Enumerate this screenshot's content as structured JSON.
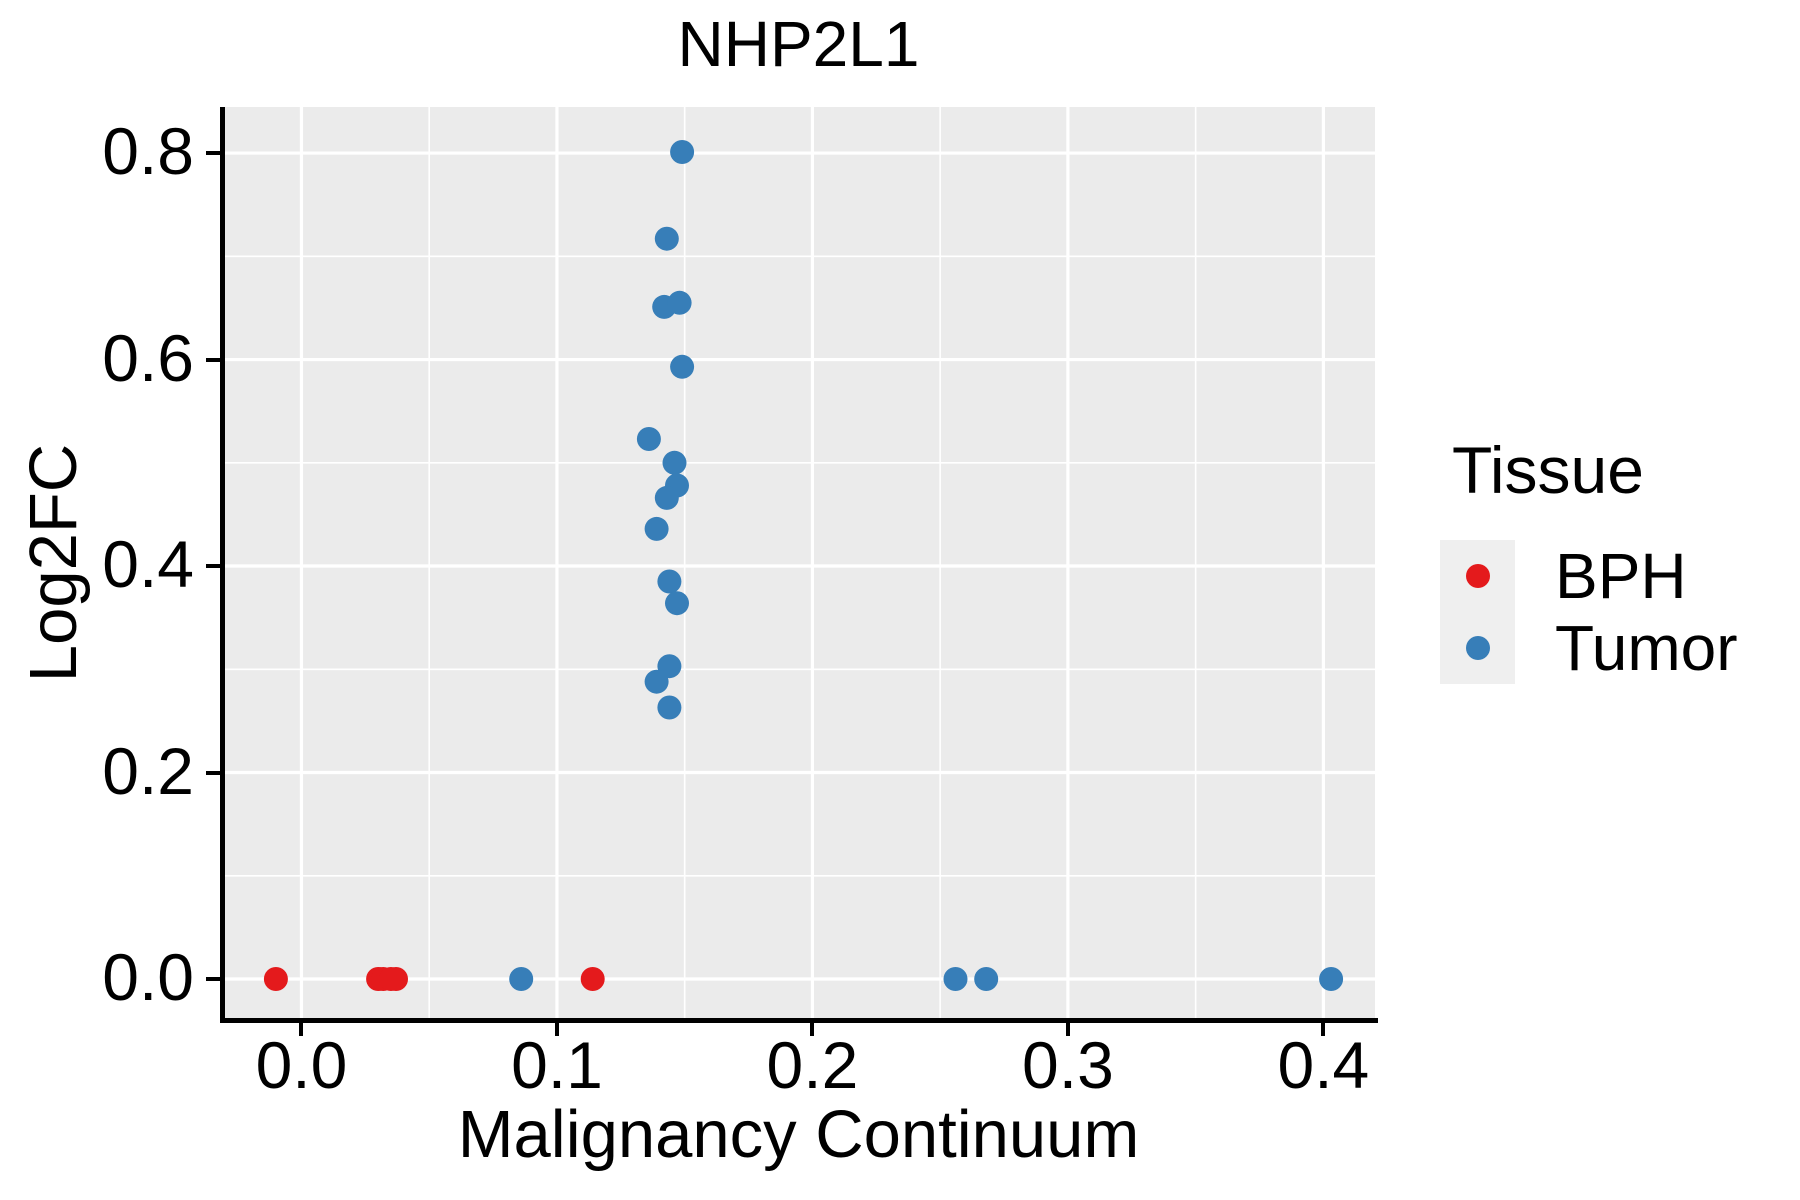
{
  "title": "NHP2L1",
  "x_axis": {
    "label": "Malignancy Continuum",
    "tick_labels": [
      "0.0",
      "0.1",
      "0.2",
      "0.3",
      "0.4"
    ],
    "tick_values": [
      0.0,
      0.1,
      0.2,
      0.3,
      0.4
    ],
    "minor_tick_values": [
      0.05,
      0.15,
      0.25,
      0.35
    ]
  },
  "y_axis": {
    "label": "Log2FC",
    "tick_labels": [
      "0.0",
      "0.2",
      "0.4",
      "0.6",
      "0.8"
    ],
    "tick_values": [
      0.0,
      0.2,
      0.4,
      0.6,
      0.8
    ],
    "minor_tick_values": [
      0.1,
      0.3,
      0.5,
      0.7
    ]
  },
  "legend": {
    "title": "Tissue",
    "items": [
      {
        "label": "BPH",
        "color": "#E41A1C"
      },
      {
        "label": "Tumor",
        "color": "#377EB8"
      }
    ]
  },
  "colors": {
    "figure_background": "#FFFFFF",
    "panel_background": "#EBEBEB",
    "gridline": "#FFFFFF",
    "axis_line": "#000000",
    "tick_mark": "#000000",
    "text": "#000000",
    "legend_key_background": "#EFEFEF"
  },
  "chart_data": {
    "type": "scatter",
    "title": "NHP2L1",
    "xlabel": "Malignancy Continuum",
    "ylabel": "Log2FC",
    "xlim": [
      -0.0311,
      0.4202
    ],
    "ylim": [
      -0.0397,
      0.8446
    ],
    "grid": "on",
    "legend_position": "right",
    "legend_title": "Tissue",
    "point_radius_px": 12,
    "series": [
      {
        "name": "BPH",
        "color": "#E41A1C",
        "points": [
          [
            -0.01,
            0.0
          ],
          [
            0.03,
            0.0
          ],
          [
            0.032,
            0.0
          ],
          [
            0.035,
            0.0
          ],
          [
            0.037,
            0.0
          ],
          [
            0.114,
            0.0
          ]
        ]
      },
      {
        "name": "Tumor",
        "color": "#377EB8",
        "points": [
          [
            0.086,
            0.0
          ],
          [
            0.256,
            0.0
          ],
          [
            0.268,
            0.0
          ],
          [
            0.403,
            0.0
          ],
          [
            0.149,
            0.801
          ],
          [
            0.143,
            0.717
          ],
          [
            0.142,
            0.651
          ],
          [
            0.148,
            0.655
          ],
          [
            0.149,
            0.593
          ],
          [
            0.136,
            0.523
          ],
          [
            0.146,
            0.5
          ],
          [
            0.147,
            0.478
          ],
          [
            0.143,
            0.466
          ],
          [
            0.139,
            0.436
          ],
          [
            0.144,
            0.385
          ],
          [
            0.147,
            0.364
          ],
          [
            0.144,
            0.303
          ],
          [
            0.139,
            0.288
          ],
          [
            0.144,
            0.263
          ]
        ]
      }
    ]
  }
}
